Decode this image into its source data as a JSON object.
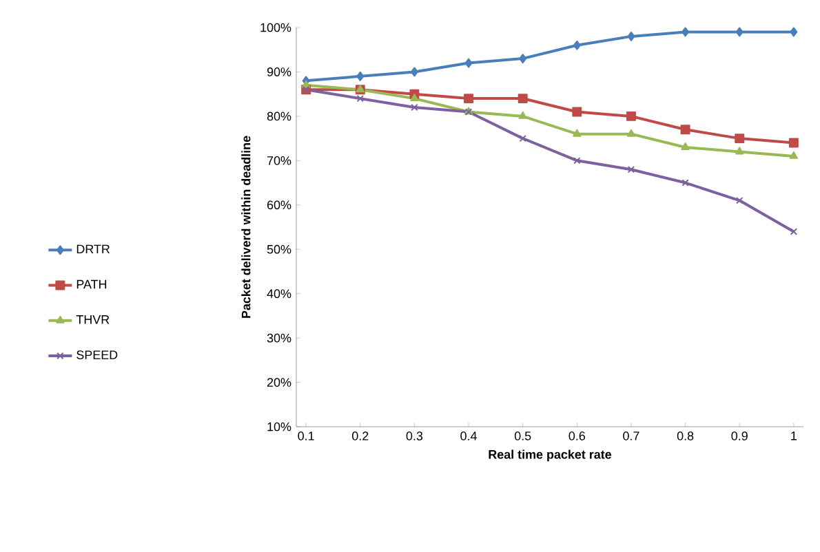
{
  "chart_data": {
    "type": "line",
    "xlabel": "Real time packet rate",
    "ylabel": "Packet deliverd within deadline",
    "categories": [
      "0.1",
      "0.2",
      "0.3",
      "0.4",
      "0.5",
      "0.6",
      "0.7",
      "0.8",
      "0.9",
      "1"
    ],
    "ylim": [
      10,
      100
    ],
    "yticks": [
      {
        "value": 10,
        "label": "10%"
      },
      {
        "value": 20,
        "label": "20%"
      },
      {
        "value": 30,
        "label": "30%"
      },
      {
        "value": 40,
        "label": "40%"
      },
      {
        "value": 50,
        "label": "50%"
      },
      {
        "value": 60,
        "label": "60%"
      },
      {
        "value": 70,
        "label": "70%"
      },
      {
        "value": 80,
        "label": "80%"
      },
      {
        "value": 90,
        "label": "90%"
      },
      {
        "value": 100,
        "label": "100%"
      }
    ],
    "grid": false,
    "legend": "left",
    "line_style": "solid",
    "series": [
      {
        "name": "DRTR",
        "color": "#4a7ebb",
        "marker": "diamond",
        "values": [
          88,
          89,
          90,
          92,
          93,
          96,
          98,
          99,
          99,
          99
        ]
      },
      {
        "name": "PATH",
        "color": "#be4b48",
        "marker": "square",
        "values": [
          86,
          86,
          85,
          84,
          84,
          81,
          80,
          77,
          75,
          74
        ]
      },
      {
        "name": "THVR",
        "color": "#98b954",
        "marker": "triangle",
        "values": [
          87,
          86,
          84,
          81,
          80,
          76,
          76,
          73,
          72,
          71
        ]
      },
      {
        "name": "SPEED",
        "color": "#7d60a0",
        "marker": "cross",
        "values": [
          86,
          84,
          82,
          81,
          75,
          70,
          68,
          65,
          61,
          54
        ]
      }
    ]
  }
}
